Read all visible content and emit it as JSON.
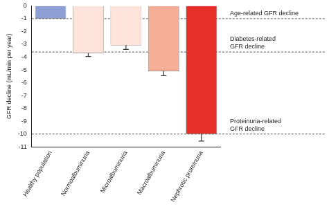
{
  "chart_data": {
    "type": "bar",
    "y_label": "GFR decline (mL/min per year)",
    "categories": [
      "Healthy population",
      "Normoalbuminuria",
      "Microalbuminuria",
      "Macroalbuminuria",
      "Nephrotic proteinuria"
    ],
    "values": [
      -1,
      -3.7,
      -3.1,
      -5.1,
      -10
    ],
    "errors": [
      null,
      0.25,
      0.3,
      0.35,
      0.55
    ],
    "colors": [
      "#8e9fd6",
      "#fde3da",
      "#fde3da",
      "#f5ae96",
      "#e8302a"
    ],
    "ylim": [
      -11,
      0
    ],
    "yticks": [
      0,
      -1,
      -2,
      -3,
      -4,
      -5,
      -6,
      -7,
      -8,
      -9,
      -10,
      -11
    ],
    "grid": false,
    "reference_lines": [
      {
        "value": -1,
        "label": [
          "Age-related GFR decline"
        ]
      },
      {
        "value": -3.6,
        "label": [
          "Diabetes-related",
          "GFR decline"
        ]
      },
      {
        "value": -10,
        "label": [
          "Proteinuria-related",
          "GFR decline"
        ]
      }
    ]
  }
}
